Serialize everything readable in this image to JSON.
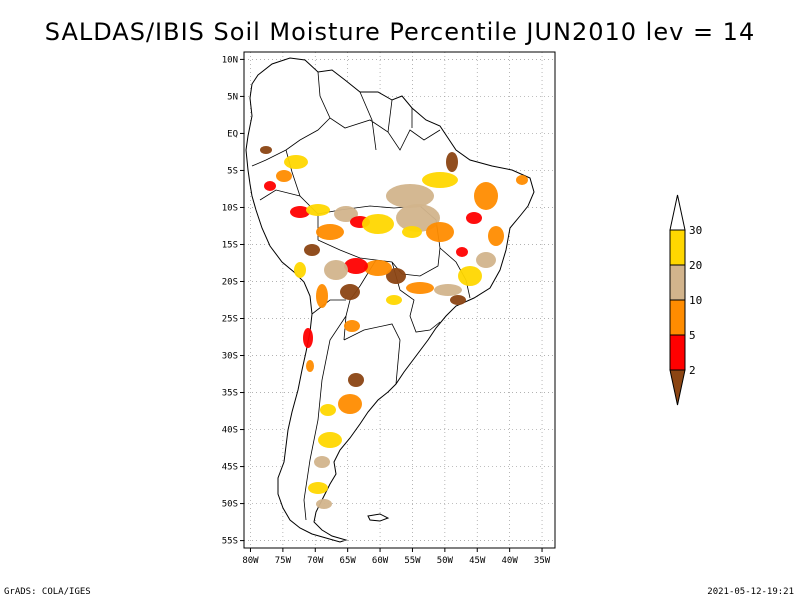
{
  "title": "SALDAS/IBIS Soil Moisture Percentile JUN2010 lev = 14",
  "map": {
    "lat_ticks": [
      "10N",
      "5N",
      "EQ",
      "5S",
      "10S",
      "15S",
      "20S",
      "25S",
      "30S",
      "35S",
      "40S",
      "45S",
      "50S",
      "55S"
    ],
    "lon_ticks": [
      "80W",
      "75W",
      "70W",
      "65W",
      "60W",
      "55W",
      "50W",
      "45W",
      "40W",
      "35W"
    ],
    "lat_range": [
      -56,
      11
    ],
    "lon_range": [
      -81,
      -33
    ]
  },
  "legend": {
    "labels": [
      "2",
      "5",
      "10",
      "20",
      "30"
    ],
    "colors": [
      "#8b4513",
      "#ff0000",
      "#ff8c00",
      "#d2b48c",
      "#ffd700",
      "#ffffff"
    ]
  },
  "footer": {
    "left": "GrADS: COLA/IGES",
    "right": "2021-05-12-19:21"
  }
}
